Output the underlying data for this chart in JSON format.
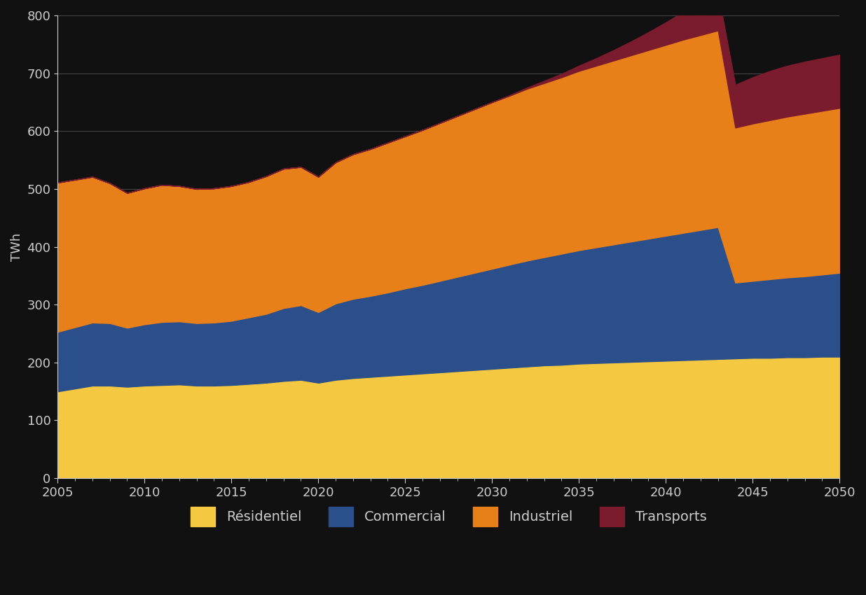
{
  "years": [
    2005,
    2006,
    2007,
    2008,
    2009,
    2010,
    2011,
    2012,
    2013,
    2014,
    2015,
    2016,
    2017,
    2018,
    2019,
    2020,
    2021,
    2022,
    2023,
    2024,
    2025,
    2026,
    2027,
    2028,
    2029,
    2030,
    2031,
    2032,
    2033,
    2034,
    2035,
    2036,
    2037,
    2038,
    2039,
    2040,
    2041,
    2042,
    2043,
    2044,
    2045,
    2046,
    2047,
    2048,
    2049,
    2050
  ],
  "residentiel": [
    150,
    155,
    160,
    160,
    158,
    160,
    161,
    162,
    160,
    160,
    161,
    163,
    165,
    168,
    170,
    165,
    170,
    173,
    175,
    177,
    179,
    181,
    183,
    185,
    187,
    189,
    191,
    193,
    195,
    196,
    198,
    199,
    200,
    201,
    202,
    203,
    204,
    205,
    206,
    207,
    208,
    208,
    209,
    209,
    210,
    210
  ],
  "commercial_inc": [
    103,
    106,
    109,
    108,
    102,
    106,
    109,
    109,
    108,
    109,
    111,
    115,
    119,
    126,
    129,
    122,
    132,
    137,
    140,
    144,
    149,
    153,
    158,
    163,
    168,
    173,
    178,
    183,
    187,
    192,
    196,
    200,
    204,
    208,
    212,
    216,
    220,
    224,
    228,
    131,
    133,
    136,
    138,
    140,
    142,
    145
  ],
  "industriel_inc": [
    258,
    255,
    252,
    242,
    233,
    235,
    237,
    234,
    232,
    232,
    233,
    234,
    238,
    241,
    239,
    234,
    244,
    250,
    254,
    259,
    263,
    268,
    273,
    278,
    283,
    288,
    292,
    297,
    301,
    305,
    310,
    314,
    318,
    322,
    326,
    330,
    334,
    337,
    340,
    268,
    272,
    275,
    278,
    281,
    283,
    285
  ],
  "transports_inc": [
    0,
    0,
    0,
    0,
    0,
    0,
    0,
    0,
    0,
    0,
    0,
    0,
    0,
    0,
    0,
    0,
    0,
    0,
    0,
    0,
    0,
    0,
    0,
    0,
    0,
    0,
    1,
    2,
    4,
    6,
    9,
    13,
    18,
    24,
    31,
    39,
    48,
    57,
    66,
    74,
    80,
    85,
    88,
    90,
    91,
    92
  ],
  "colors": {
    "residentiel": "#F5C842",
    "commercial": "#2B4F8A",
    "industriel": "#E8801A",
    "transports": "#7B1B2E"
  },
  "ylabel": "TWh",
  "ylim": [
    0,
    800
  ],
  "yticks": [
    0,
    100,
    200,
    300,
    400,
    500,
    600,
    700,
    800
  ],
  "xlim": [
    2005,
    2050
  ],
  "xticks": [
    2005,
    2010,
    2015,
    2020,
    2025,
    2030,
    2035,
    2040,
    2045,
    2050
  ],
  "legend_labels": [
    "Résidentiel",
    "Commercial",
    "Industriel",
    "Transports"
  ],
  "bg_color": "#111111",
  "plot_bg": "#111111",
  "grid_color": "#444444",
  "text_color": "#cccccc"
}
